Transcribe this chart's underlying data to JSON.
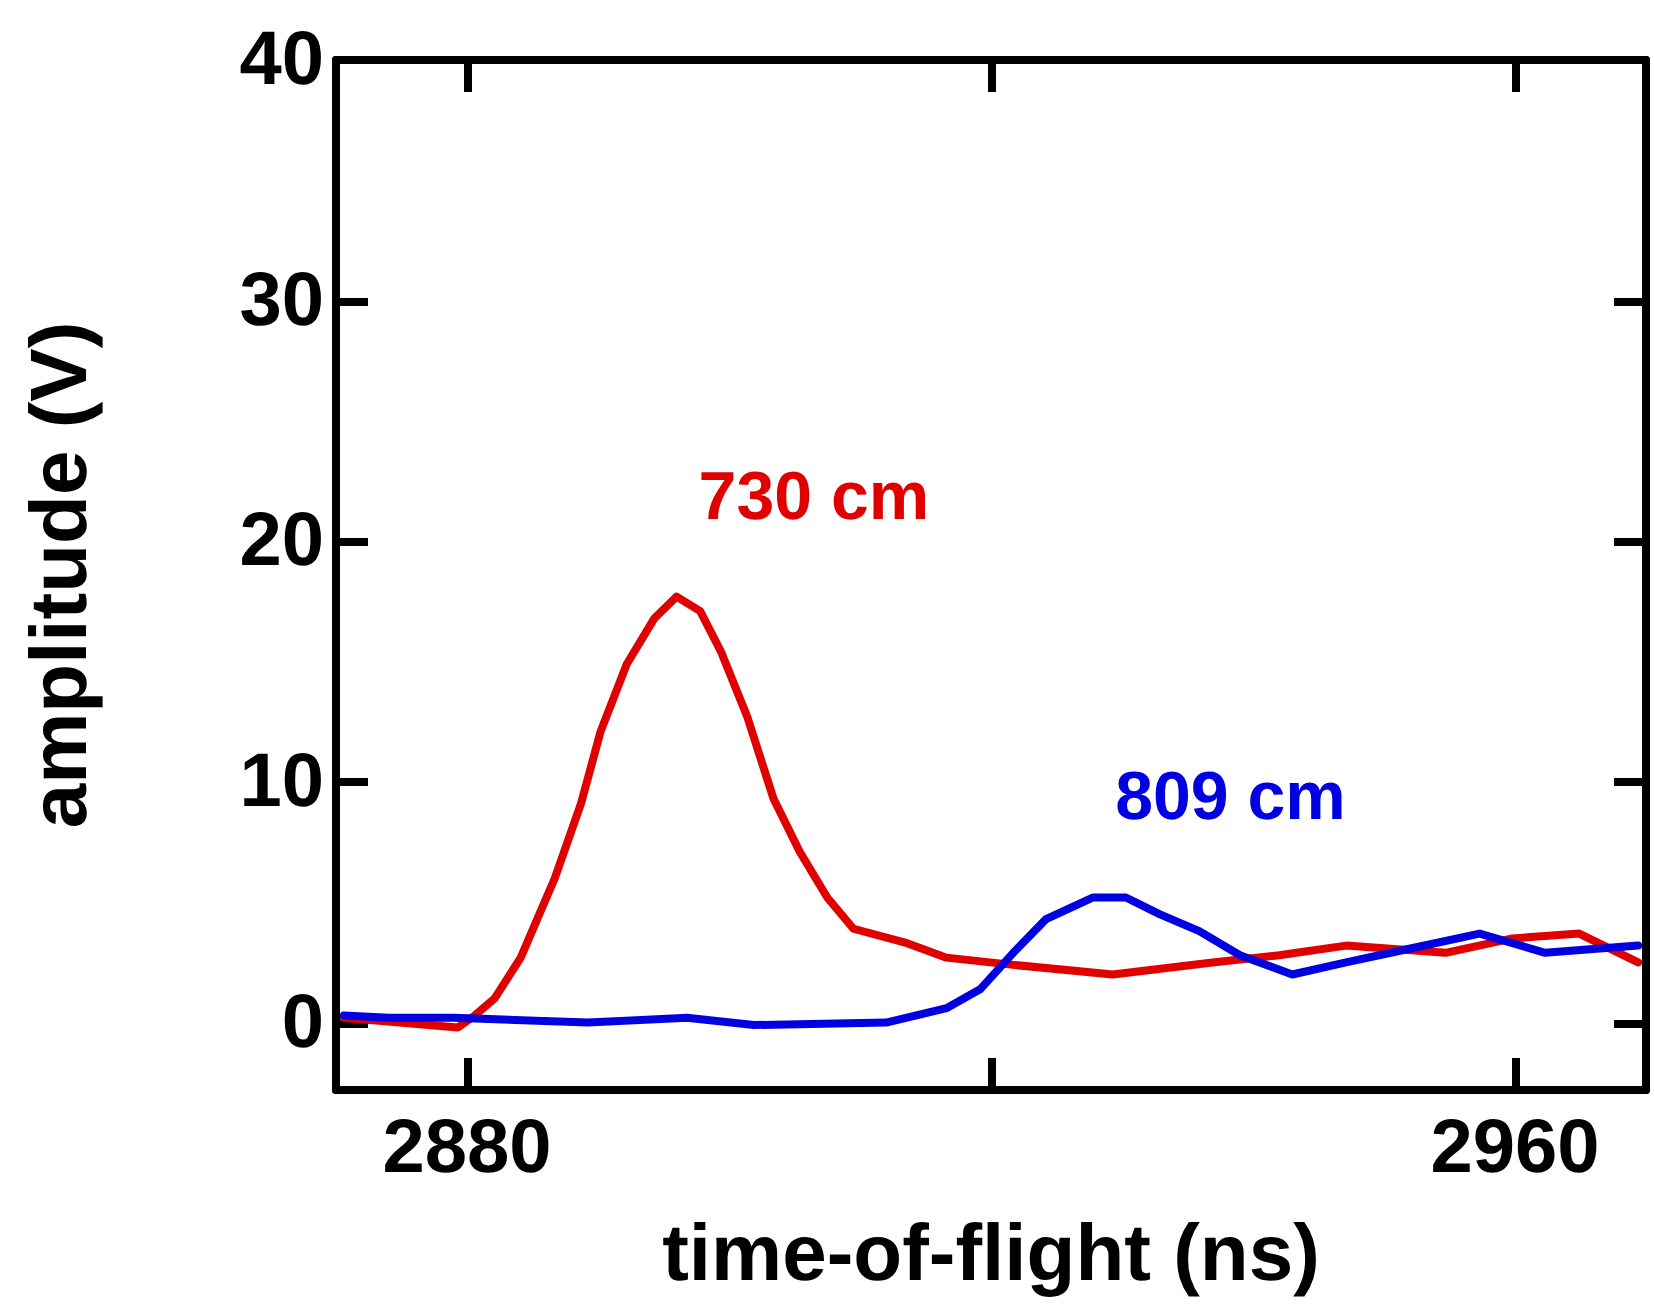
{
  "chart_data": {
    "type": "line",
    "xlabel": "time-of-flight (ns)",
    "ylabel": "amplitude (V)",
    "xlim": [
      2870,
      2970
    ],
    "xticks": [
      2880,
      {
        "value": 2920,
        "label": null
      },
      2960
    ],
    "ylim": [
      -2.8,
      40
    ],
    "yticks": [
      0,
      10,
      20,
      30,
      40
    ],
    "grid": false,
    "legend": false,
    "marker": "none",
    "line_style": "solid",
    "series": [
      {
        "name": "730 cm",
        "color": "#e00000",
        "x": [
          2870.6,
          2879.3,
          2880.6,
          2882.1,
          2884.1,
          2886.7,
          2888.7,
          2890.2,
          2892.2,
          2894.3,
          2896.0,
          2897.8,
          2899.4,
          2901.4,
          2903.4,
          2905.4,
          2907.5,
          2909.5,
          2913.6,
          2916.6,
          2921.7,
          2929.3,
          2936.9,
          2942.0,
          2947.1,
          2954.7,
          2959.8,
          2964.9,
          2969.4
        ],
        "values": [
          0.2,
          -0.2,
          0.3,
          1.0,
          2.7,
          6.0,
          9.1,
          12.1,
          14.9,
          16.8,
          17.7,
          17.1,
          15.4,
          12.7,
          9.3,
          7.1,
          5.2,
          3.9,
          3.3,
          2.7,
          2.4,
          2.0,
          2.5,
          2.8,
          3.2,
          2.9,
          3.5,
          3.7,
          2.5
        ]
      },
      {
        "name": "809 cm",
        "color": "#0000e0",
        "x": [
          2870.6,
          2874,
          2879,
          2889.2,
          2896.8,
          2901.9,
          2912,
          2916.6,
          2919.2,
          2921.7,
          2924.2,
          2927.8,
          2930.3,
          2932.9,
          2935.9,
          2939.0,
          2943.0,
          2947.1,
          2952.2,
          2957.3,
          2962.3,
          2969.4
        ],
        "values": [
          0.3,
          0.2,
          0.2,
          0,
          0.2,
          -0.1,
          0,
          0.6,
          1.4,
          2.9,
          4.3,
          5.2,
          5.2,
          4.5,
          3.8,
          2.8,
          2.0,
          2.5,
          3.1,
          3.7,
          2.9,
          3.2
        ]
      }
    ]
  }
}
